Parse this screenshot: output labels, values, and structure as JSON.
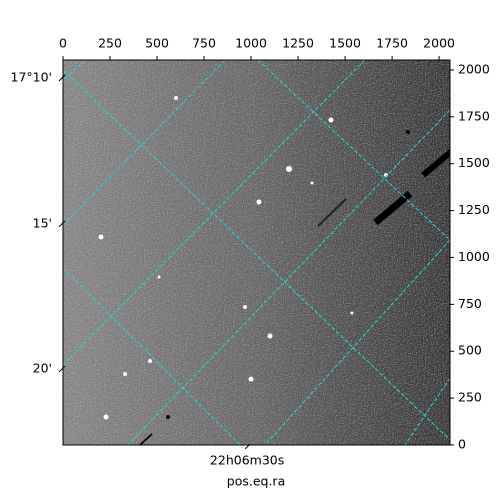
{
  "chart_data": {
    "type": "image",
    "xlabel": "pos.eq.ra",
    "xlim": [
      0,
      2058
    ],
    "ylim": [
      0,
      2053
    ],
    "xticks": [
      0,
      250,
      500,
      750,
      1000,
      1250,
      1500,
      1750,
      2000
    ],
    "yticks": [
      0,
      250,
      500,
      750,
      1000,
      1250,
      1500,
      1750,
      2000
    ],
    "dec_ticks": [
      {
        "value": 1957,
        "label": "17°10'"
      },
      {
        "value": 1179,
        "label": "15'"
      },
      {
        "value": 405,
        "label": "20'"
      }
    ],
    "ra_ticks": [
      {
        "value": 979,
        "label": "22h06m30s"
      }
    ],
    "colormap": "gray"
  }
}
